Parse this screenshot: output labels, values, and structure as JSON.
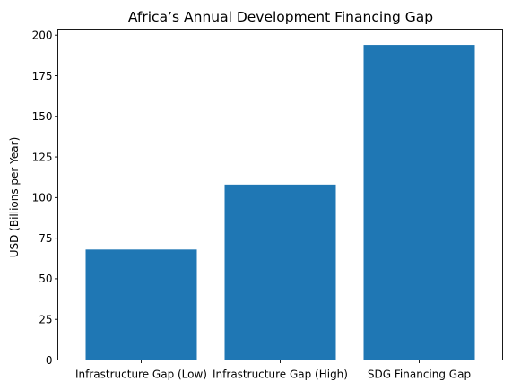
{
  "chart_data": {
    "type": "bar",
    "title": "Africa’s Annual Development Financing Gap",
    "xlabel": "",
    "ylabel": "USD (Billions per Year)",
    "categories": [
      "Infrastructure Gap (Low)",
      "Infrastructure Gap (High)",
      "SDG Financing Gap"
    ],
    "values": [
      68,
      108,
      194
    ],
    "ylim": [
      0,
      203.7
    ],
    "yticks": [
      0,
      25,
      50,
      75,
      100,
      125,
      150,
      175,
      200
    ],
    "ytick_labels": [
      "0",
      "25",
      "50",
      "75",
      "100",
      "125",
      "150",
      "175",
      "200"
    ],
    "bar_color": "#1f77b4",
    "grid": false,
    "legend": "none"
  }
}
